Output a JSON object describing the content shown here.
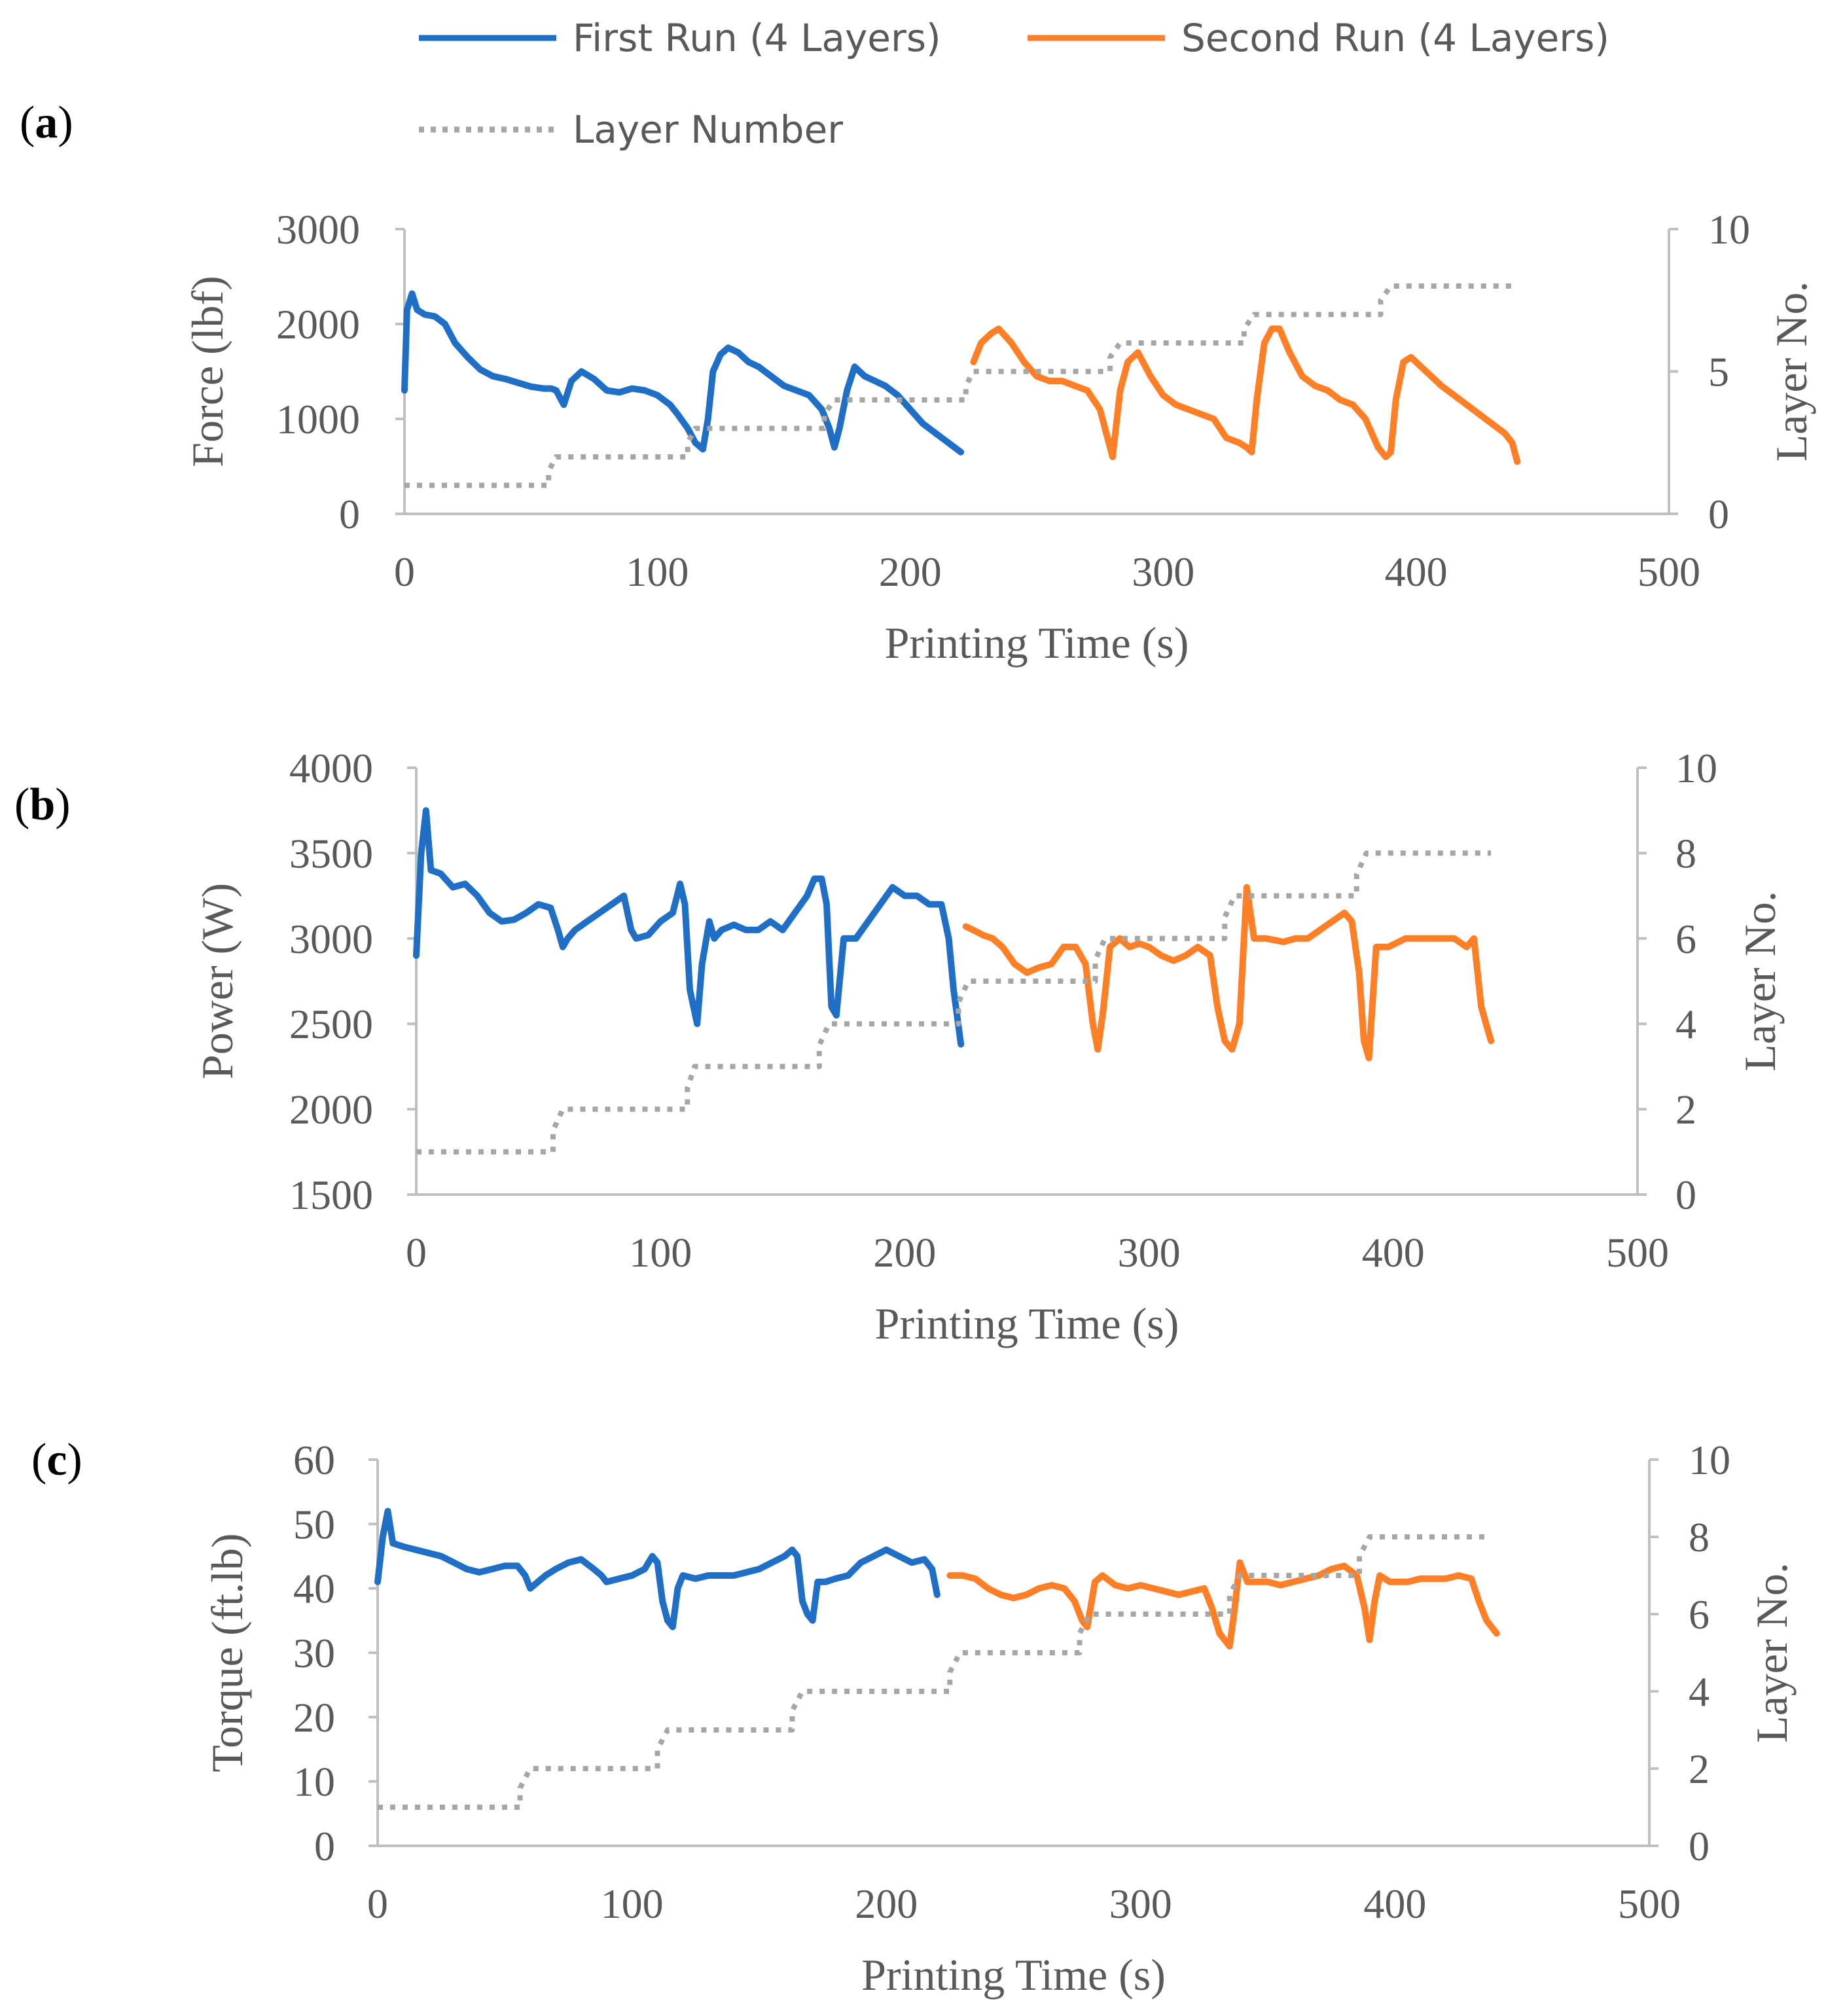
{
  "colors": {
    "first_run": "#1f6fc6",
    "second_run": "#ff7f27",
    "layer": "#a6a6a6",
    "axis": "#bfbfbf",
    "text": "#595959"
  },
  "legend": {
    "first_run": "First Run (4 Layers)",
    "second_run": "Second Run (4 Layers)",
    "layer": "Layer Number"
  },
  "chart_data": [
    {
      "type": "line",
      "panel_label": "a",
      "xlabel": "Printing Time (s)",
      "ylabel": "Force (lbf)",
      "y2label": "Layer No.",
      "xlim": [
        0,
        500
      ],
      "ylim": [
        0,
        3000
      ],
      "y2lim": [
        0,
        10
      ],
      "xticks": [
        0,
        100,
        200,
        300,
        400,
        500
      ],
      "yticks": [
        0,
        1000,
        2000,
        3000
      ],
      "y2ticks": [
        0,
        5,
        10
      ],
      "legend_position": "top",
      "series": [
        {
          "name": "First Run (4 Layers)",
          "axis": "left",
          "x": [
            0,
            1,
            3,
            5,
            8,
            12,
            16,
            20,
            25,
            30,
            35,
            40,
            45,
            50,
            55,
            58,
            60,
            63,
            66,
            70,
            75,
            80,
            85,
            90,
            95,
            100,
            105,
            108,
            112,
            115,
            118,
            120,
            122,
            125,
            128,
            132,
            136,
            140,
            145,
            150,
            155,
            160,
            165,
            168,
            170,
            172,
            175,
            178,
            182,
            186,
            190,
            195,
            200,
            205,
            210,
            215,
            220
          ],
          "y": [
            1300,
            2150,
            2320,
            2150,
            2100,
            2080,
            2000,
            1800,
            1650,
            1520,
            1450,
            1420,
            1380,
            1340,
            1320,
            1320,
            1300,
            1150,
            1400,
            1500,
            1420,
            1300,
            1280,
            1320,
            1300,
            1250,
            1150,
            1050,
            900,
            750,
            680,
            1000,
            1500,
            1680,
            1750,
            1700,
            1600,
            1550,
            1450,
            1350,
            1300,
            1250,
            1100,
            900,
            700,
            900,
            1300,
            1550,
            1450,
            1400,
            1350,
            1250,
            1100,
            950,
            850,
            750,
            650
          ]
        },
        {
          "name": "Second Run (4 Layers)",
          "axis": "left",
          "x": [
            225,
            228,
            232,
            235,
            240,
            245,
            250,
            255,
            260,
            265,
            270,
            275,
            278,
            280,
            283,
            286,
            290,
            295,
            300,
            305,
            310,
            315,
            320,
            325,
            330,
            333,
            335,
            337,
            340,
            343,
            346,
            350,
            355,
            360,
            365,
            370,
            375,
            380,
            385,
            388,
            390,
            392,
            395,
            398,
            402,
            406,
            410,
            415,
            420,
            425,
            430,
            435,
            438,
            440
          ],
          "y": [
            1600,
            1800,
            1900,
            1950,
            1800,
            1600,
            1450,
            1400,
            1400,
            1350,
            1300,
            1100,
            800,
            600,
            1300,
            1600,
            1700,
            1450,
            1250,
            1150,
            1100,
            1050,
            1000,
            800,
            750,
            700,
            650,
            1200,
            1800,
            1950,
            1950,
            1700,
            1450,
            1350,
            1300,
            1200,
            1150,
            1000,
            700,
            600,
            650,
            1200,
            1600,
            1650,
            1550,
            1450,
            1350,
            1250,
            1150,
            1050,
            950,
            850,
            750,
            550
          ]
        },
        {
          "name": "Layer Number",
          "axis": "right",
          "x": [
            0,
            57,
            57,
            60,
            112,
            112,
            115,
            166,
            166,
            170,
            222,
            222,
            225,
            279,
            279,
            283,
            332,
            332,
            336,
            386,
            386,
            390,
            440
          ],
          "y": [
            1,
            1,
            1.5,
            2,
            2,
            2.5,
            3,
            3,
            3.5,
            4,
            4,
            4.5,
            5,
            5,
            5.5,
            6,
            6,
            6.5,
            7,
            7,
            7.5,
            8,
            8
          ]
        }
      ]
    },
    {
      "type": "line",
      "panel_label": "b",
      "xlabel": "Printing Time (s)",
      "ylabel": "Power (W)",
      "y2label": "Layer No.",
      "xlim": [
        0,
        500
      ],
      "ylim": [
        1500,
        4000
      ],
      "y2lim": [
        0,
        10
      ],
      "xticks": [
        0,
        100,
        200,
        300,
        400,
        500
      ],
      "yticks": [
        1500,
        2000,
        2500,
        3000,
        3500,
        4000
      ],
      "y2ticks": [
        0,
        2,
        4,
        6,
        8,
        10
      ],
      "series": [
        {
          "name": "First Run (4 Layers)",
          "axis": "left",
          "x": [
            0,
            2,
            4,
            6,
            10,
            15,
            20,
            25,
            30,
            35,
            40,
            45,
            50,
            55,
            58,
            60,
            62,
            65,
            70,
            75,
            80,
            85,
            88,
            90,
            95,
            100,
            105,
            108,
            110,
            112,
            115,
            117,
            120,
            122,
            125,
            130,
            135,
            140,
            145,
            150,
            155,
            160,
            163,
            166,
            168,
            170,
            172,
            175,
            180,
            185,
            190,
            195,
            200,
            205,
            210,
            215,
            218,
            220,
            223
          ],
          "y": [
            2900,
            3500,
            3750,
            3400,
            3380,
            3300,
            3320,
            3250,
            3150,
            3100,
            3110,
            3150,
            3200,
            3180,
            3050,
            2950,
            3000,
            3050,
            3100,
            3150,
            3200,
            3250,
            3050,
            3000,
            3020,
            3100,
            3150,
            3320,
            3200,
            2700,
            2500,
            2850,
            3100,
            3000,
            3050,
            3080,
            3050,
            3050,
            3100,
            3050,
            3150,
            3250,
            3350,
            3350,
            3200,
            2600,
            2550,
            3000,
            3000,
            3100,
            3200,
            3300,
            3250,
            3250,
            3200,
            3200,
            3000,
            2700,
            2380
          ]
        },
        {
          "name": "Second Run (4 Layers)",
          "axis": "left",
          "x": [
            225,
            228,
            232,
            236,
            240,
            245,
            250,
            255,
            260,
            265,
            270,
            274,
            277,
            279,
            281,
            284,
            288,
            292,
            296,
            300,
            305,
            310,
            315,
            320,
            325,
            328,
            331,
            334,
            337,
            340,
            343,
            348,
            355,
            360,
            365,
            370,
            375,
            380,
            383,
            386,
            388,
            390,
            393,
            398,
            405,
            410,
            415,
            420,
            425,
            430,
            433,
            436,
            438,
            440
          ],
          "y": [
            3070,
            3050,
            3020,
            3000,
            2950,
            2850,
            2800,
            2830,
            2850,
            2950,
            2950,
            2850,
            2500,
            2350,
            2550,
            2950,
            3000,
            2950,
            2970,
            2950,
            2900,
            2870,
            2900,
            2950,
            2900,
            2600,
            2400,
            2350,
            2500,
            3300,
            3000,
            3000,
            2980,
            3000,
            3000,
            3050,
            3100,
            3150,
            3100,
            2800,
            2400,
            2300,
            2950,
            2950,
            3000,
            3000,
            3000,
            3000,
            3000,
            2950,
            3000,
            2600,
            2500,
            2400
          ]
        },
        {
          "name": "Layer Number",
          "axis": "right",
          "x": [
            0,
            56,
            56,
            60,
            111,
            111,
            114,
            165,
            165,
            169,
            222,
            222,
            226,
            278,
            278,
            282,
            331,
            331,
            335,
            385,
            385,
            389,
            440
          ],
          "y": [
            1,
            1,
            1.5,
            2,
            2,
            2.5,
            3,
            3,
            3.5,
            4,
            4,
            4.5,
            5,
            5,
            5.5,
            6,
            6,
            6.5,
            7,
            7,
            7.5,
            8,
            8
          ]
        }
      ]
    },
    {
      "type": "line",
      "panel_label": "c",
      "xlabel": "Printing Time (s)",
      "ylabel": "Torque (ft.lb)",
      "y2label": "Layer No.",
      "xlim": [
        0,
        500
      ],
      "ylim": [
        0,
        60
      ],
      "y2lim": [
        0,
        10
      ],
      "xticks": [
        0,
        100,
        200,
        300,
        400,
        500
      ],
      "yticks": [
        0,
        10,
        20,
        30,
        40,
        50,
        60
      ],
      "y2ticks": [
        0,
        2,
        4,
        6,
        8,
        10
      ],
      "series": [
        {
          "name": "First Run (4 Layers)",
          "axis": "left",
          "x": [
            0,
            2,
            4,
            6,
            10,
            15,
            20,
            25,
            30,
            35,
            40,
            45,
            50,
            55,
            58,
            60,
            63,
            66,
            70,
            75,
            80,
            85,
            88,
            90,
            95,
            100,
            105,
            108,
            110,
            112,
            114,
            116,
            118,
            120,
            125,
            130,
            135,
            140,
            145,
            150,
            155,
            160,
            163,
            165,
            167,
            169,
            171,
            173,
            176,
            180,
            185,
            190,
            195,
            200,
            205,
            210,
            215,
            218,
            220
          ],
          "y": [
            41,
            48,
            52,
            47,
            46.5,
            46,
            45.5,
            45,
            44,
            43,
            42.5,
            43,
            43.5,
            43.5,
            42,
            40,
            41,
            42,
            43,
            44,
            44.5,
            43,
            42,
            41,
            41.5,
            42,
            43,
            45,
            44,
            38,
            35,
            34,
            40,
            42,
            41.5,
            42,
            42,
            42,
            42.5,
            43,
            44,
            45,
            46,
            45,
            38,
            36,
            35,
            41,
            41,
            41.5,
            42,
            44,
            45,
            46,
            45,
            44,
            44.5,
            43,
            39
          ]
        },
        {
          "name": "Second Run (4 Layers)",
          "axis": "left",
          "x": [
            225,
            230,
            235,
            240,
            245,
            250,
            255,
            260,
            265,
            270,
            274,
            277,
            279,
            282,
            285,
            290,
            295,
            300,
            305,
            310,
            315,
            320,
            325,
            328,
            331,
            333,
            335,
            337,
            339,
            342,
            346,
            350,
            355,
            360,
            365,
            370,
            375,
            380,
            385,
            388,
            390,
            392,
            394,
            398,
            405,
            410,
            415,
            420,
            425,
            430,
            433,
            436,
            440
          ],
          "y": [
            42,
            42,
            41.5,
            40,
            39,
            38.5,
            39,
            40,
            40.5,
            40,
            38,
            35,
            34,
            41,
            42,
            40.5,
            40,
            40.5,
            40,
            39.5,
            39,
            39.5,
            40,
            37,
            33,
            32,
            31,
            37,
            44,
            41,
            41,
            41,
            40.5,
            41,
            41.5,
            42,
            43,
            43.5,
            42,
            37,
            32,
            38,
            42,
            41,
            41,
            41.5,
            41.5,
            41.5,
            42,
            41.5,
            38,
            35,
            33
          ]
        },
        {
          "name": "Layer Number",
          "axis": "right",
          "x": [
            0,
            56,
            56,
            60,
            110,
            110,
            114,
            163,
            163,
            167,
            225,
            225,
            229,
            276,
            276,
            280,
            335,
            335,
            339,
            386,
            386,
            390,
            437
          ],
          "y": [
            1,
            1,
            1.5,
            2,
            2,
            2.5,
            3,
            3,
            3.5,
            4,
            4,
            4.5,
            5,
            5,
            5.5,
            6,
            6,
            6.5,
            7,
            7,
            7.5,
            8,
            8
          ]
        }
      ]
    }
  ]
}
